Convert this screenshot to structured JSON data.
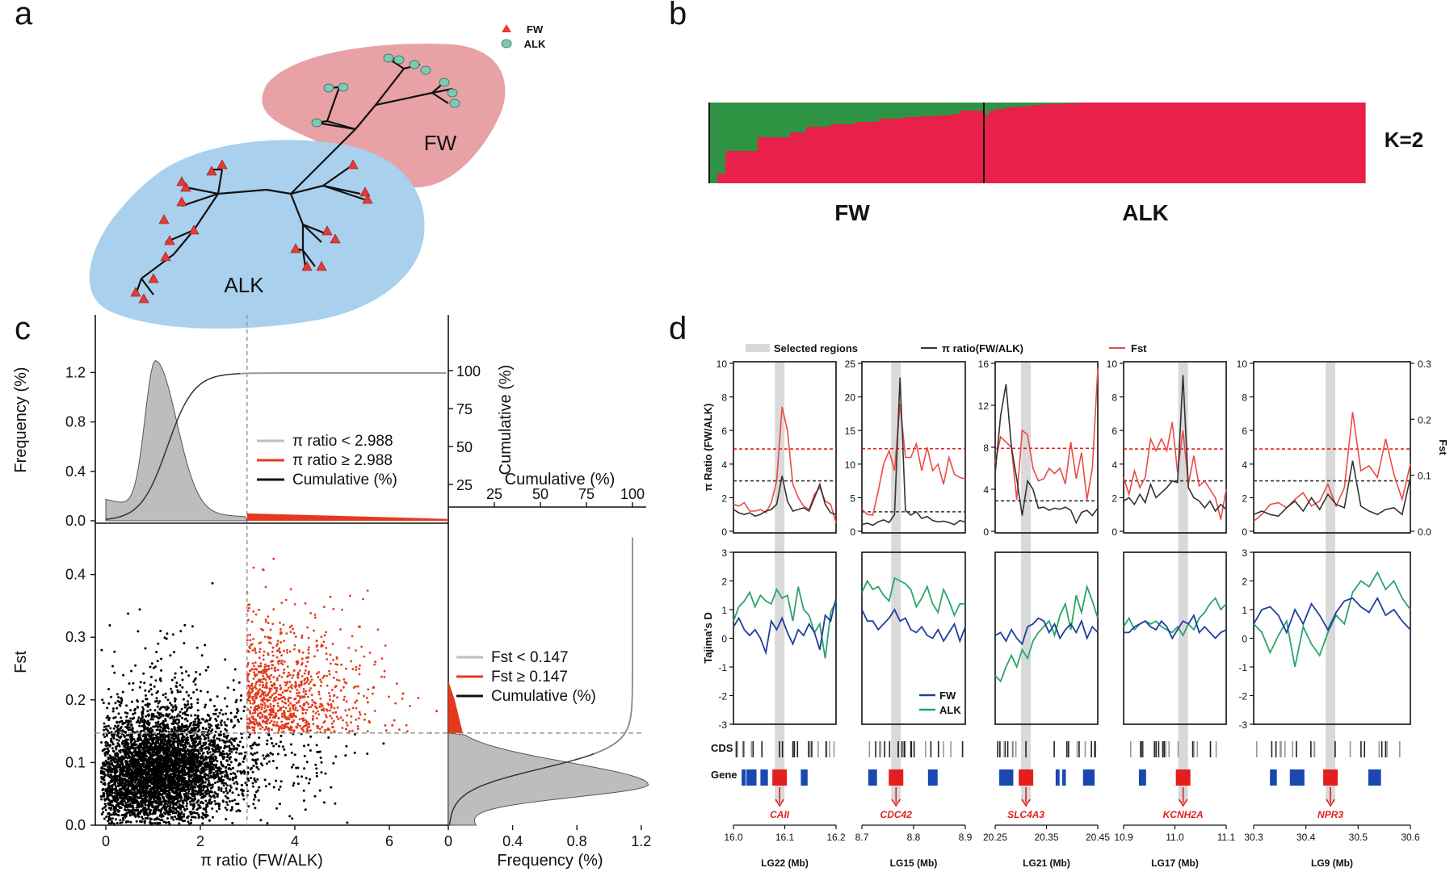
{
  "panel_letters": [
    "a",
    "b",
    "c",
    "d"
  ],
  "colors": {
    "fw": "#e8a2a6",
    "alk": "#a9d0ec",
    "red": "#e8204a",
    "green": "#2e9444",
    "gray": "#bdbdbd",
    "orange_red": "#e33a1d",
    "blue": "#1f3f9e",
    "teal": "#2aa56a",
    "fst_line": "#ec4b45",
    "pi_line": "#333333"
  },
  "icons": [
    "triangle-icon",
    "circle-icon"
  ],
  "panel_a": {
    "legend": [
      {
        "label": "FW",
        "marker": "triangle"
      },
      {
        "label": "ALK",
        "marker": "circle"
      }
    ],
    "cluster_labels": {
      "fw": "FW",
      "alk": "ALK"
    }
  },
  "panel_b": {
    "k_label": "K=2",
    "group_labels": [
      "FW",
      "ALK"
    ],
    "fw_green_fractions": [
      1.0,
      0.88,
      0.6,
      0.6,
      0.6,
      0.6,
      0.43,
      0.43,
      0.43,
      0.43,
      0.37,
      0.37,
      0.3,
      0.3,
      0.3,
      0.27,
      0.27,
      0.27,
      0.24,
      0.24,
      0.24,
      0.2,
      0.2,
      0.2,
      0.18,
      0.18,
      0.17,
      0.17,
      0.16,
      0.16,
      0.14,
      0.1,
      0.1,
      0.1
    ],
    "alk_green_fractions": [
      0.15,
      0.1,
      0.08,
      0.08,
      0.06,
      0.06,
      0.05,
      0.05,
      0.04,
      0.03,
      0.03,
      0.02,
      0.02,
      0.02,
      0.01,
      0.01,
      0.01,
      0.0,
      0.0,
      0.0,
      0.0,
      0.0,
      0.0,
      0.0,
      0.0,
      0.0,
      0.0,
      0.0,
      0.0,
      0.0,
      0.0,
      0.0,
      0.0,
      0.0,
      0.0,
      0.0,
      0.0,
      0.0,
      0.0,
      0.0,
      0.0,
      0.0,
      0.0,
      0.0,
      0.0,
      0.0,
      0.0,
      0.0,
      0.0,
      0.0,
      0.0,
      0.0,
      0.0,
      0.0,
      0.0,
      0.0,
      0.0,
      0.0,
      0.0,
      0.0,
      0.0,
      0.0,
      0.0,
      0.0,
      0.0,
      0.0,
      0.0,
      0.0,
      0.0,
      0.0
    ]
  },
  "panel_c": {
    "x_label": "π ratio (FW/ALK)",
    "y_label": "Fst",
    "top_y_label": "Frequency (%)",
    "top_right_label": "Cumulative (%)",
    "right_x_label": "Frequency (%)",
    "right_top_label": "Cumulative (%)",
    "x_ticks": [
      "0",
      "2",
      "4",
      "6"
    ],
    "y_ticks": [
      "0.0",
      "0.1",
      "0.2",
      "0.3",
      "0.4"
    ],
    "top_y_ticks": [
      "0.0",
      "0.4",
      "0.8",
      "1.2"
    ],
    "top_right_ticks": [
      "25",
      "50",
      "75",
      "100"
    ],
    "right_x_ticks": [
      "0",
      "0.4",
      "0.8",
      "1.2"
    ],
    "right_top_ticks": [
      "25",
      "50",
      "75",
      "100"
    ],
    "pi_threshold": 2.988,
    "fst_threshold": 0.147,
    "top_legend": [
      "π ratio < 2.988",
      "π ratio ≥ 2.988",
      "Cumulative (%)"
    ],
    "right_legend": [
      "Fst < 0.147",
      "Fst ≥ 0.147",
      "Cumulative (%)"
    ]
  },
  "panel_d": {
    "legend_top": [
      "Selected regions",
      "π ratio(FW/ALK)",
      "Fst"
    ],
    "legend_bottom": [
      "FW",
      "ALK"
    ],
    "y_label_top": "π Ratio (FW/ALK)",
    "y_label_bottom": "Tajima's D",
    "y_label_right": "Fst",
    "tajima_ticks": [
      "3",
      "2",
      "1",
      "0",
      "-1",
      "-2",
      "-3"
    ],
    "fst_ticks": [
      "0.3",
      "0.2",
      "0.1",
      "0.0"
    ],
    "row_labels": [
      "CDS",
      "Gene"
    ],
    "chromosomes": [
      {
        "lg": "LG22 (Mb)",
        "gene": "CAII",
        "x_ticks": [
          "16.0",
          "16.1",
          "16.2"
        ],
        "y_ticks": [
          "10",
          "8",
          "6",
          "4",
          "2",
          "0"
        ],
        "ymax": 10,
        "fst_thr": 4.9,
        "pi_thr": 3.0,
        "sel": 0.45,
        "pi": [
          1.3,
          1.1,
          1.0,
          1.1,
          0.9,
          1.0,
          1.2,
          1.3,
          1.6,
          3.3,
          1.8,
          1.2,
          1.3,
          1.4,
          1.2,
          2.0,
          2.8,
          1.6,
          1.1,
          1.0
        ],
        "fst": [
          1.6,
          1.5,
          1.7,
          1.2,
          1.2,
          1.3,
          1.1,
          1.7,
          3.0,
          7.4,
          6.0,
          2.8,
          2.0,
          1.5,
          1.3,
          2.2,
          2.6,
          1.8,
          1.6,
          0.5
        ],
        "fw": [
          0.4,
          0.7,
          0.3,
          0.1,
          0.3,
          0.0,
          -0.5,
          0.6,
          0.3,
          0.7,
          0.2,
          -0.2,
          0.3,
          0.1,
          0.5,
          0.2,
          -0.4,
          0.8,
          0.6,
          1.4
        ],
        "alk": [
          0.6,
          1.1,
          1.3,
          1.6,
          1.1,
          1.5,
          1.3,
          1.2,
          1.7,
          1.4,
          1.5,
          0.6,
          1.8,
          1.0,
          0.8,
          0.2,
          0.5,
          -0.7,
          0.9,
          1.3
        ]
      },
      {
        "lg": "LG15 (Mb)",
        "gene": "CDC42",
        "x_ticks": [
          "8.7",
          "8.8",
          "8.9"
        ],
        "y_ticks": [
          "25",
          "20",
          "15",
          "10",
          "5",
          "0"
        ],
        "ymax": 25,
        "fst_thr": 12.3,
        "pi_thr": 2.9,
        "sel": 0.33,
        "pi": [
          1.0,
          1.2,
          0.9,
          1.4,
          1.7,
          1.3,
          2.5,
          22.9,
          3.1,
          2.4,
          2.9,
          1.9,
          2.2,
          1.6,
          1.4,
          1.5,
          1.3,
          1.0,
          1.6,
          1.4
        ],
        "fst": [
          3.3,
          2.5,
          2.4,
          6.0,
          10.0,
          12.0,
          9.0,
          19.0,
          11.0,
          11.0,
          13.0,
          9.0,
          12.5,
          9.0,
          10.0,
          7.0,
          11.0,
          8.5,
          8.0,
          7.8
        ],
        "fw": [
          1.0,
          0.6,
          0.6,
          0.3,
          0.5,
          0.7,
          1.0,
          0.6,
          0.7,
          0.3,
          0.2,
          0.4,
          0.1,
          0.0,
          0.3,
          -0.1,
          0.2,
          0.5,
          -0.1,
          0.4
        ],
        "alk": [
          1.6,
          2.0,
          1.7,
          1.8,
          1.5,
          1.3,
          2.1,
          2.0,
          1.9,
          1.7,
          1.1,
          1.4,
          1.8,
          1.2,
          0.9,
          1.7,
          1.3,
          0.8,
          1.2,
          1.2
        ]
      },
      {
        "lg": "LG21 (Mb)",
        "gene": "SLC4A3",
        "x_ticks": [
          "20.25",
          "20.35",
          "20.45"
        ],
        "y_ticks": [
          "16",
          "12",
          "8",
          "4",
          "0"
        ],
        "ymax": 16,
        "fst_thr": 7.9,
        "pi_thr": 2.9,
        "sel": 0.3,
        "pi": [
          5.5,
          11.0,
          14.0,
          8.0,
          5.0,
          1.5,
          4.8,
          4.0,
          2.2,
          2.3,
          2.0,
          2.2,
          2.1,
          2.3,
          2.0,
          0.8,
          1.8,
          2.0,
          1.5,
          2.2
        ],
        "fst": [
          6.5,
          9.0,
          8.5,
          8.0,
          3.0,
          9.6,
          9.2,
          6.0,
          4.8,
          5.0,
          6.0,
          5.5,
          6.0,
          4.5,
          8.5,
          5.0,
          7.5,
          3.0,
          6.0,
          15.5
        ],
        "fw": [
          0.1,
          0.2,
          -0.1,
          0.3,
          0.0,
          -0.2,
          0.4,
          0.5,
          0.7,
          0.6,
          0.2,
          0.5,
          0.0,
          0.3,
          0.5,
          0.2,
          0.6,
          0.0,
          0.4,
          0.2
        ],
        "alk": [
          -1.3,
          -1.5,
          -1.0,
          -0.6,
          -1.0,
          -0.4,
          -0.7,
          -0.1,
          0.2,
          0.4,
          0.6,
          0.1,
          0.8,
          1.2,
          0.3,
          1.5,
          0.9,
          1.8,
          1.3,
          0.7
        ]
      },
      {
        "lg": "LG17 (Mb)",
        "gene": "KCNH2A",
        "x_ticks": [
          "10.9",
          "11.0",
          "11.1"
        ],
        "y_ticks": [
          "10",
          "8",
          "6",
          "4",
          "2",
          "0"
        ],
        "ymax": 10,
        "fst_thr": 4.9,
        "pi_thr": 3.0,
        "sel": 0.58,
        "pi": [
          1.8,
          2.0,
          1.6,
          2.2,
          1.7,
          2.8,
          2.0,
          2.3,
          2.6,
          3.0,
          2.9,
          9.3,
          2.6,
          2.0,
          1.8,
          1.4,
          1.8,
          1.2,
          1.6,
          1.3
        ],
        "fst": [
          3.2,
          2.2,
          3.6,
          2.6,
          3.2,
          5.5,
          4.8,
          5.5,
          4.8,
          6.5,
          3.5,
          6.0,
          2.8,
          4.5,
          2.7,
          3.0,
          2.5,
          2.0,
          0.7,
          2.5
        ],
        "fw": [
          0.2,
          0.2,
          0.4,
          0.5,
          0.6,
          0.4,
          0.3,
          0.6,
          0.4,
          0.0,
          0.3,
          0.6,
          0.5,
          0.8,
          0.2,
          0.4,
          0.2,
          0.0,
          0.2,
          0.3
        ],
        "alk": [
          0.4,
          0.7,
          0.3,
          0.5,
          0.6,
          0.5,
          0.6,
          0.4,
          0.3,
          0.2,
          0.4,
          0.1,
          0.5,
          0.3,
          0.7,
          0.9,
          1.2,
          1.4,
          1.0,
          1.2
        ]
      },
      {
        "lg": "LG9 (Mb)",
        "gene": "NPR3",
        "x_ticks": [
          "30.3",
          "30.4",
          "30.5",
          "30.6"
        ],
        "y_ticks": [
          "10",
          "8",
          "6",
          "4",
          "2",
          "0"
        ],
        "ymax": 10,
        "fst_thr": 4.9,
        "pi_thr": 3.0,
        "sel": 0.49,
        "pi": [
          1.0,
          1.2,
          1.0,
          0.9,
          1.4,
          1.8,
          1.2,
          2.0,
          1.3,
          2.2,
          1.6,
          1.4,
          4.2,
          1.5,
          1.2,
          1.0,
          1.3,
          1.4,
          1.0,
          3.2
        ],
        "fst": [
          0.6,
          1.0,
          1.6,
          1.7,
          1.4,
          1.9,
          2.3,
          1.5,
          1.8,
          2.8,
          1.5,
          2.6,
          7.1,
          3.6,
          3.9,
          3.2,
          5.5,
          3.4,
          1.9,
          4.0
        ],
        "fw": [
          0.5,
          1.0,
          1.1,
          0.8,
          0.2,
          1.0,
          0.5,
          1.2,
          0.8,
          0.3,
          0.9,
          1.3,
          1.4,
          1.1,
          0.9,
          1.4,
          0.8,
          1.0,
          0.6,
          0.3
        ],
        "alk": [
          0.5,
          0.2,
          -0.5,
          0.1,
          0.6,
          -1.0,
          0.4,
          -0.2,
          -0.6,
          0.2,
          0.8,
          0.5,
          1.6,
          2.0,
          1.8,
          2.3,
          1.7,
          2.0,
          1.4,
          1.0
        ]
      }
    ]
  },
  "chart_data": [
    {
      "type": "other",
      "title": "",
      "description": "unrooted neighbour-joining tree",
      "legend": [
        "FW",
        "ALK"
      ],
      "groups": [
        "FW",
        "ALK"
      ]
    },
    {
      "type": "bar",
      "title": "",
      "legend": [
        "K=2"
      ],
      "groups": [
        "FW",
        "ALK"
      ],
      "stacked": true,
      "series_colors": [
        "#2e9444",
        "#e8204a"
      ]
    },
    {
      "type": "scatter",
      "title": "",
      "xlabel": "π ratio (FW/ALK)",
      "ylabel": "Fst",
      "xlim": [
        0,
        7.5
      ],
      "ylim": [
        0,
        0.47
      ],
      "thresholds": {
        "pi_ratio": 2.988,
        "fst": 0.147
      },
      "marginals": [
        "Frequency (%)",
        "Cumulative (%)"
      ]
    },
    {
      "type": "line",
      "title": "",
      "panels": [
        "LG22 (Mb)",
        "LG15 (Mb)",
        "LG21 (Mb)",
        "LG17 (Mb)",
        "LG9 (Mb)"
      ],
      "genes": [
        "CAII",
        "CDC42",
        "SLC4A3",
        "KCNH2A",
        "NPR3"
      ],
      "series": [
        {
          "name": "π ratio(FW/ALK)"
        },
        {
          "name": "Fst"
        },
        {
          "name": "FW"
        },
        {
          "name": "ALK"
        }
      ]
    }
  ]
}
